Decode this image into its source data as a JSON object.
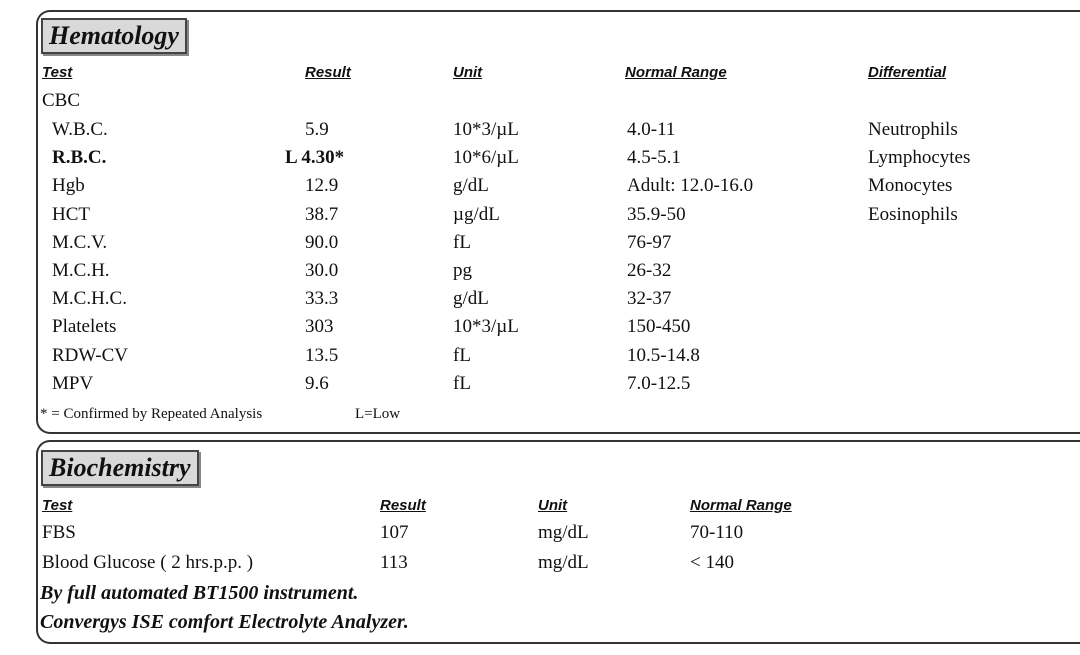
{
  "hematology": {
    "title": "Hematology",
    "headers": [
      "Test",
      "Result",
      "Unit",
      "Normal Range",
      "Differential"
    ],
    "group": "CBC",
    "rows": [
      [
        "W.B.C.",
        "5.9",
        "10*3/µL",
        "4.0-11"
      ],
      [
        "R.B.C.",
        "L 4.30*",
        "10*6/µL",
        "4.5-5.1"
      ],
      [
        "Hgb",
        "12.9",
        "g/dL",
        "Adult: 12.0-16.0"
      ],
      [
        "HCT",
        "38.7",
        "µg/dL",
        "35.9-50"
      ],
      [
        "M.C.V.",
        "90.0",
        "fL",
        "76-97"
      ],
      [
        "M.C.H.",
        "30.0",
        "pg",
        "26-32"
      ],
      [
        "M.C.H.C.",
        "33.3",
        "g/dL",
        "32-37"
      ],
      [
        "Platelets",
        "303",
        "10*3/µL",
        "150-450"
      ],
      [
        "RDW-CV",
        "13.5",
        "fL",
        "10.5-14.8"
      ],
      [
        "MPV",
        "9.6",
        "fL",
        "7.0-12.5"
      ]
    ],
    "differential": [
      "Neutrophils",
      "Lymphocytes",
      "Monocytes",
      "Eosinophils"
    ],
    "footnote": "* = Confirmed by Repeated Analysis",
    "legend": "L=Low"
  },
  "biochemistry": {
    "title": "Biochemistry",
    "headers": [
      "Test",
      "Result",
      "Unit",
      "Normal Range"
    ],
    "rows": [
      [
        "FBS",
        "107",
        "mg/dL",
        "70-110"
      ],
      [
        "Blood Glucose ( 2 hrs.p.p. )",
        "113",
        "mg/dL",
        "< 140"
      ]
    ],
    "notes": [
      "By full automated BT1500 instrument.",
      "Convergys ISE comfort Electrolyte Analyzer."
    ]
  }
}
